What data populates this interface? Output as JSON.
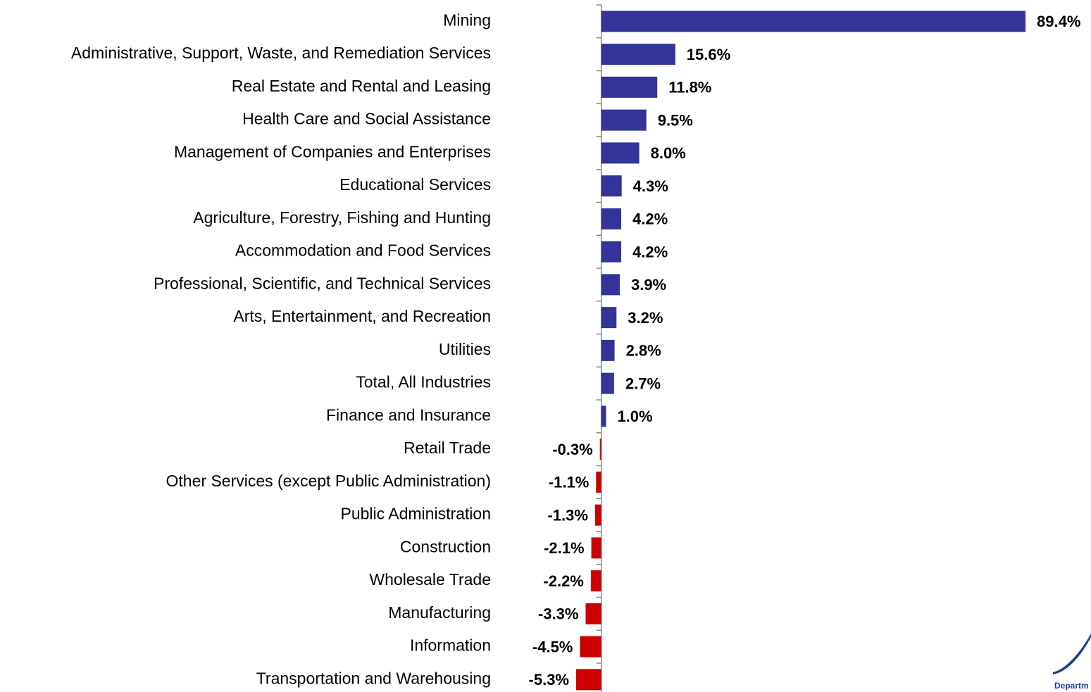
{
  "chart_data": {
    "type": "bar",
    "orientation": "horizontal",
    "categories": [
      "Mining",
      "Administrative, Support, Waste, and Remediation Services",
      "Real Estate and Rental and Leasing",
      "Health Care and Social Assistance",
      "Management of Companies and Enterprises",
      "Educational Services",
      "Agriculture, Forestry, Fishing and Hunting",
      "Accommodation and Food Services",
      "Professional, Scientific, and Technical Services",
      "Arts, Entertainment, and Recreation",
      "Utilities",
      "Total, All Industries",
      "Finance and Insurance",
      "Retail Trade",
      "Other Services (except Public Administration)",
      "Public Administration",
      "Construction",
      "Wholesale Trade",
      "Manufacturing",
      "Information",
      "Transportation and Warehousing"
    ],
    "values": [
      89.4,
      15.6,
      11.8,
      9.5,
      8.0,
      4.3,
      4.2,
      4.2,
      3.9,
      3.2,
      2.8,
      2.7,
      1.0,
      -0.3,
      -1.1,
      -1.3,
      -2.1,
      -2.2,
      -3.3,
      -4.5,
      -5.3
    ],
    "value_labels": [
      "89.4%",
      "15.6%",
      "11.8%",
      "9.5%",
      "8.0%",
      "4.3%",
      "4.2%",
      "4.2%",
      "3.9%",
      "3.2%",
      "2.8%",
      "2.7%",
      "1.0%",
      "-0.3%",
      "-1.1%",
      "-1.3%",
      "-2.1%",
      "-2.2%",
      "-3.3%",
      "-4.5%",
      "-5.3%"
    ],
    "positive_color": "#333399",
    "negative_color": "#cc0000"
  },
  "logo": {
    "text": "Departm"
  }
}
